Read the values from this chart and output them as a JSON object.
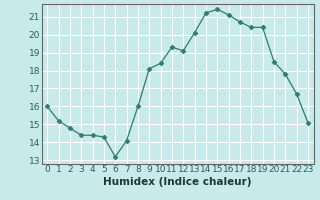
{
  "x": [
    0,
    1,
    2,
    3,
    4,
    5,
    6,
    7,
    8,
    9,
    10,
    11,
    12,
    13,
    14,
    15,
    16,
    17,
    18,
    19,
    20,
    21,
    22,
    23
  ],
  "y": [
    16.0,
    15.2,
    14.8,
    14.4,
    14.4,
    14.3,
    13.2,
    14.1,
    16.0,
    18.1,
    18.4,
    19.3,
    19.1,
    20.1,
    21.2,
    21.4,
    21.1,
    20.7,
    20.4,
    20.4,
    18.5,
    17.8,
    16.7,
    15.1
  ],
  "line_color": "#2e7d6e",
  "marker": "D",
  "marker_size": 2.5,
  "bg_color": "#c8eaea",
  "grid_color": "#ffffff",
  "xlabel": "Humidex (Indice chaleur)",
  "xlim": [
    -0.5,
    23.5
  ],
  "ylim": [
    12.8,
    21.7
  ],
  "yticks": [
    13,
    14,
    15,
    16,
    17,
    18,
    19,
    20,
    21
  ],
  "xticks": [
    0,
    1,
    2,
    3,
    4,
    5,
    6,
    7,
    8,
    9,
    10,
    11,
    12,
    13,
    14,
    15,
    16,
    17,
    18,
    19,
    20,
    21,
    22,
    23
  ],
  "tick_label_fontsize": 6.5,
  "xlabel_fontsize": 7.5,
  "spine_color": "#666666"
}
